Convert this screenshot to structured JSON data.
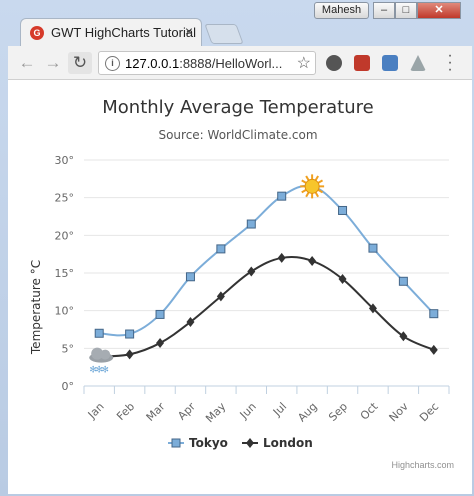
{
  "browser": {
    "tab_title": "GWT HighCharts Tutorial",
    "tab_close": "×",
    "user": "Mahesh",
    "url_host": "127.0.0.1",
    "url_rest": ":8888/HelloWorl...",
    "favicon_text": "G"
  },
  "chart_data": {
    "type": "line",
    "title": "Monthly Average Temperature",
    "subtitle": "Source: WorldClimate.com",
    "ylabel": "Temperature °C",
    "xlabel": "",
    "categories": [
      "Jan",
      "Feb",
      "Mar",
      "Apr",
      "May",
      "Jun",
      "Jul",
      "Aug",
      "Sep",
      "Oct",
      "Nov",
      "Dec"
    ],
    "ylim": [
      0,
      30
    ],
    "yticks": [
      "0°",
      "5°",
      "10°",
      "15°",
      "20°",
      "25°",
      "30°"
    ],
    "grid": true,
    "legend_position": "bottom",
    "series": [
      {
        "name": "Tokyo",
        "color": "#7cadd9",
        "marker": "square",
        "values": [
          7.0,
          6.9,
          9.5,
          14.5,
          18.2,
          21.5,
          25.2,
          26.5,
          23.3,
          18.3,
          13.9,
          9.6
        ]
      },
      {
        "name": "London",
        "color": "#333333",
        "marker": "diamond",
        "values": [
          3.9,
          4.2,
          5.7,
          8.5,
          11.9,
          15.2,
          17.0,
          16.6,
          14.2,
          10.3,
          6.6,
          4.8
        ]
      }
    ],
    "annotations": [
      {
        "series": "Tokyo",
        "category": "Aug",
        "icon": "sun-icon"
      },
      {
        "series": "London",
        "category": "Jan",
        "icon": "snow-cloud-icon"
      }
    ],
    "credits": "Highcharts.com"
  }
}
